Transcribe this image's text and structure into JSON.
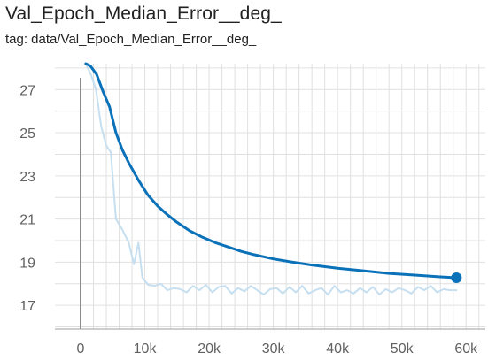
{
  "card": {
    "title": "Val_Epoch_Median_Error__deg_",
    "tag": "tag: data/Val_Epoch_Median_Error__deg_"
  },
  "colors": {
    "smoothed": "#0b72b9",
    "raw": "#c6dff0",
    "grid": "#e0e0e0",
    "axis": "#9e9e9e",
    "tick_text": "#616161"
  },
  "chart_data": {
    "type": "line",
    "title": "Val_Epoch_Median_Error__deg_",
    "xlabel": "",
    "ylabel": "",
    "xlim": [
      -4000,
      63000
    ],
    "ylim": [
      15.9,
      28.2
    ],
    "x_ticks": [
      0,
      10000,
      20000,
      30000,
      40000,
      50000,
      60000
    ],
    "x_tick_labels": [
      "0",
      "10k",
      "20k",
      "30k",
      "40k",
      "50k",
      "60k"
    ],
    "y_ticks": [
      17,
      19,
      21,
      23,
      25,
      27
    ],
    "y_tick_labels": [
      "17",
      "19",
      "21",
      "23",
      "25",
      "27"
    ],
    "grid": true,
    "series": [
      {
        "role": "raw",
        "x": [
          800,
          1600,
          2400,
          3200,
          4000,
          4700,
          5500,
          6500,
          7500,
          8300,
          9000,
          9600,
          10500,
          11500,
          12500,
          13500,
          14500,
          15500,
          16500,
          17500,
          18500,
          19500,
          20500,
          21500,
          22500,
          23500,
          24500,
          25500,
          26500,
          27500,
          28500,
          29500,
          30500,
          31500,
          32500,
          33500,
          34500,
          35500,
          36500,
          37500,
          38500,
          39500,
          40500,
          41500,
          42500,
          43500,
          44500,
          45500,
          46500,
          47500,
          48500,
          49500,
          50500,
          51500,
          52500,
          53500,
          54500,
          55500,
          56500,
          57500,
          58500
        ],
        "y": [
          28.2,
          27.7,
          27.0,
          25.3,
          24.4,
          24.1,
          21.0,
          20.5,
          19.9,
          18.9,
          19.9,
          18.3,
          17.95,
          17.9,
          18.0,
          17.7,
          17.8,
          17.75,
          17.6,
          17.9,
          17.7,
          17.95,
          17.6,
          17.85,
          17.9,
          17.55,
          17.8,
          17.65,
          17.9,
          17.7,
          17.5,
          17.75,
          17.8,
          17.55,
          17.85,
          17.6,
          17.9,
          17.55,
          17.7,
          17.8,
          17.5,
          17.9,
          17.6,
          17.7,
          17.55,
          17.8,
          17.6,
          17.85,
          17.5,
          17.75,
          17.6,
          17.8,
          17.7,
          17.55,
          17.85,
          17.7,
          17.9,
          17.6,
          17.75,
          17.7,
          17.7
        ]
      },
      {
        "role": "smoothed",
        "x": [
          800,
          1500,
          2500,
          3500,
          4500,
          5500,
          6500,
          7500,
          9000,
          10500,
          12000,
          13500,
          15000,
          17000,
          19000,
          21000,
          23000,
          25000,
          27000,
          30000,
          33000,
          36000,
          40000,
          44000,
          48000,
          52000,
          56000,
          58500
        ],
        "y": [
          28.2,
          28.1,
          27.7,
          26.9,
          26.2,
          25.0,
          24.2,
          23.6,
          22.8,
          22.1,
          21.6,
          21.2,
          20.85,
          20.45,
          20.15,
          19.9,
          19.7,
          19.5,
          19.35,
          19.15,
          19.0,
          18.87,
          18.72,
          18.6,
          18.48,
          18.4,
          18.32,
          18.28
        ]
      }
    ]
  }
}
